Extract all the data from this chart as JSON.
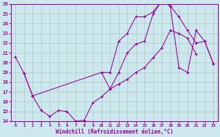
{
  "xlabel": "Windchill (Refroidissement éolien,°C)",
  "bg_color": "#cce8ee",
  "line_color": "#990099",
  "grid_color": "#aaccbb",
  "xlim": [
    -0.5,
    23.5
  ],
  "ylim": [
    14,
    26
  ],
  "xticks": [
    0,
    1,
    2,
    3,
    4,
    5,
    6,
    7,
    8,
    9,
    10,
    11,
    12,
    13,
    14,
    15,
    16,
    17,
    18,
    19,
    20,
    21,
    22,
    23
  ],
  "yticks": [
    14,
    15,
    16,
    17,
    18,
    19,
    20,
    21,
    22,
    23,
    24,
    25,
    26
  ],
  "lineA_x": [
    0,
    1,
    2,
    3,
    4,
    5,
    6,
    7,
    8,
    9,
    10,
    11,
    12,
    13,
    14,
    15,
    16,
    17,
    18,
    19,
    20,
    21
  ],
  "lineA_y": [
    20.6,
    18.9,
    16.6,
    15.1,
    14.5,
    15.1,
    15.0,
    14.0,
    14.1,
    15.9,
    16.5,
    17.3,
    17.8,
    18.3,
    19.0,
    19.5,
    20.5,
    21.5,
    23.3,
    23.0,
    22.5,
    20.9
  ],
  "lineB_x": [
    1,
    2,
    10,
    11,
    12,
    13,
    14,
    15,
    16,
    17,
    18,
    19,
    20,
    21,
    22,
    23
  ],
  "lineB_y": [
    18.9,
    16.6,
    19.0,
    17.3,
    19.0,
    21.0,
    21.9,
    22.2,
    25.0,
    26.3,
    25.8,
    19.5,
    19.0,
    23.3,
    22.2,
    19.9
  ],
  "lineC_x": [
    10,
    11,
    12,
    13,
    14,
    15,
    16,
    17,
    18,
    19,
    20,
    21,
    22,
    23
  ],
  "lineC_y": [
    19.0,
    19.0,
    22.2,
    23.0,
    24.7,
    24.7,
    25.2,
    26.3,
    25.8,
    24.7,
    23.3,
    22.0,
    22.2,
    19.9
  ]
}
